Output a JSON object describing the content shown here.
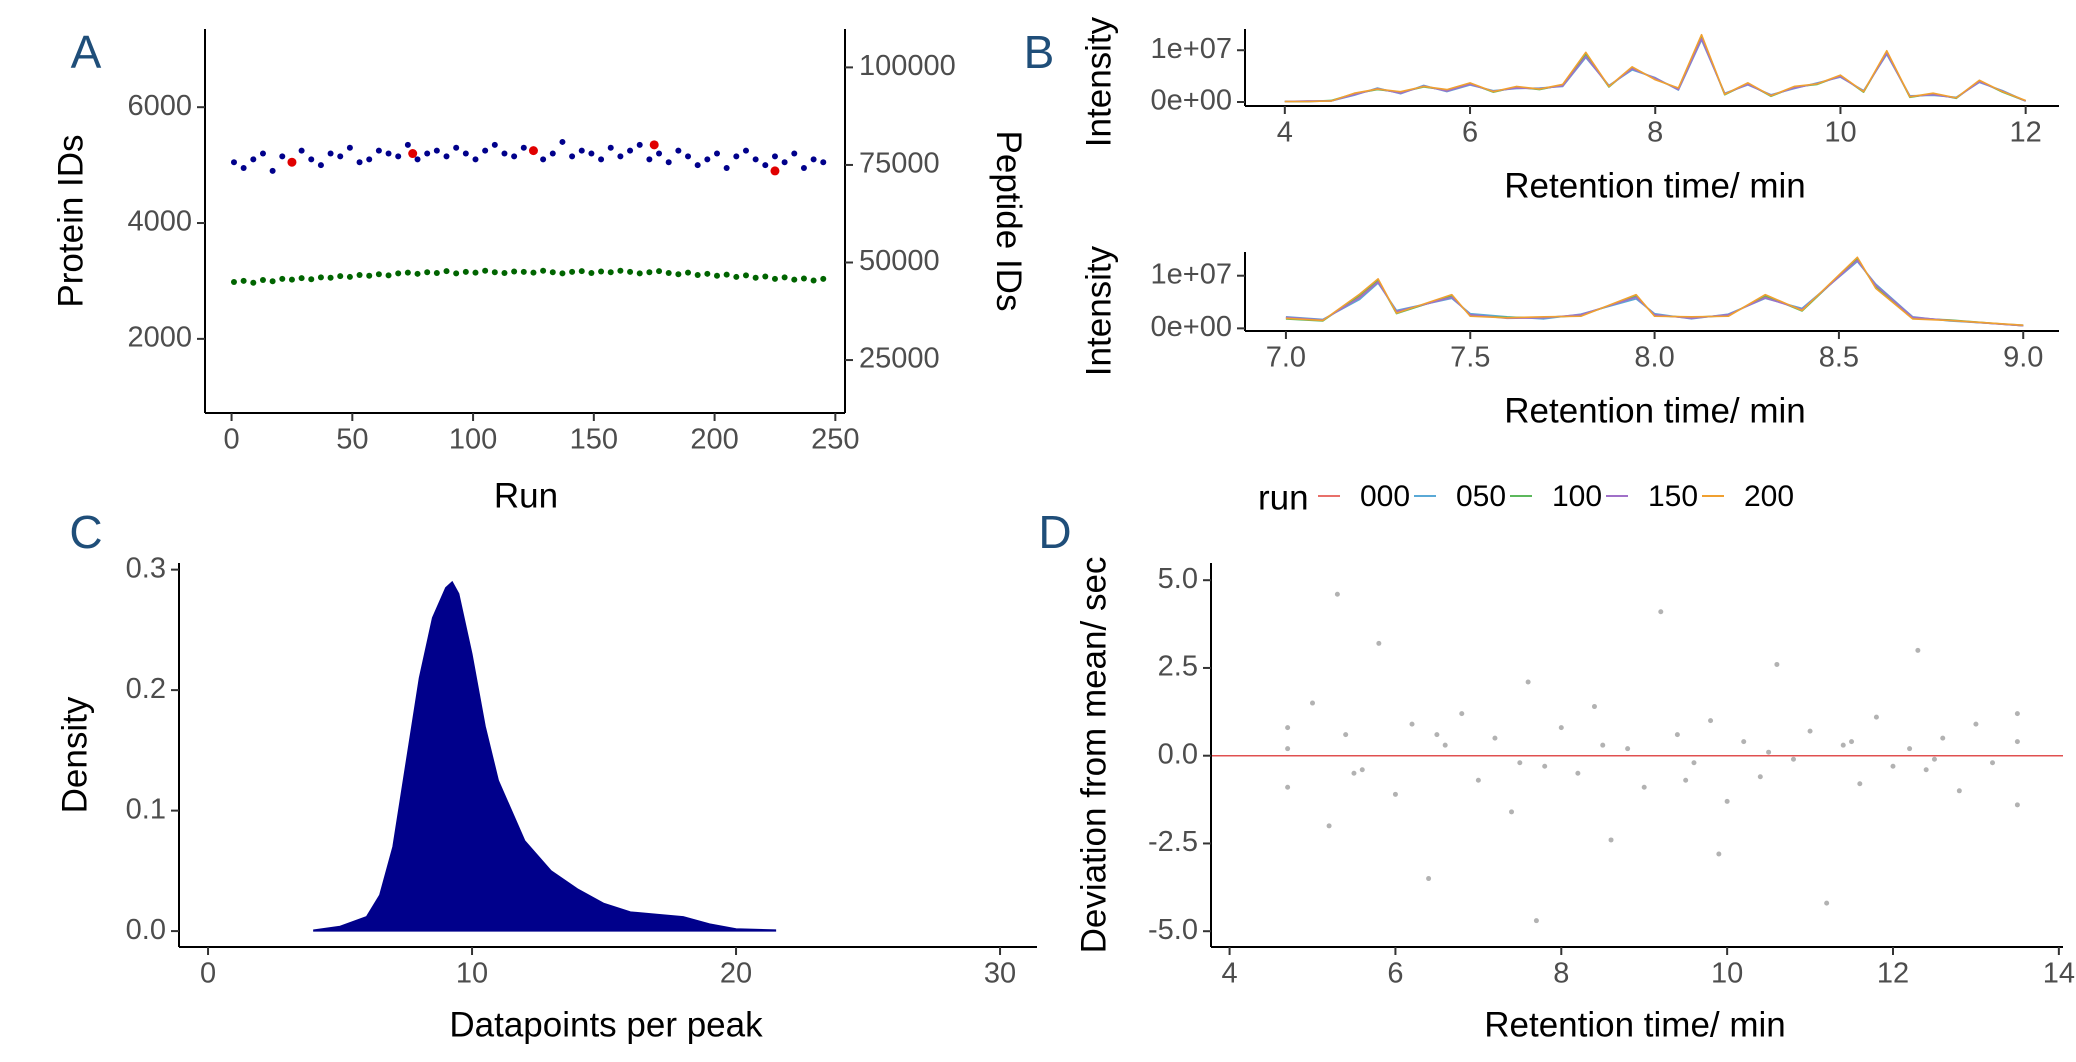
{
  "chart_data": [
    {
      "type": "scatter",
      "panel_label": "A",
      "xlabel": "Run",
      "ylabel": "Protein IDs",
      "y2label": "Peptide IDs",
      "ylabel_color": "#00008b",
      "y2label_color": "#006400",
      "xlim": [
        -11,
        254
      ],
      "xticks": [
        0,
        50,
        100,
        150,
        200,
        250
      ],
      "ylim": [
        720,
        7350
      ],
      "yticks": [
        2000,
        4000,
        6000
      ],
      "y2lim": [
        11430,
        109840
      ],
      "y2ticks": [
        25000,
        50000,
        75000,
        100000
      ],
      "series": [
        {
          "color": "#00008b",
          "x": [
            1,
            5,
            9,
            13,
            17,
            21,
            25,
            29,
            33,
            37,
            41,
            45,
            49,
            53,
            57,
            61,
            65,
            69,
            73,
            77,
            81,
            85,
            89,
            93,
            97,
            101,
            105,
            109,
            113,
            117,
            121,
            125,
            129,
            133,
            137,
            141,
            145,
            149,
            153,
            157,
            161,
            165,
            169,
            173,
            177,
            181,
            185,
            189,
            193,
            197,
            201,
            205,
            209,
            213,
            217,
            221,
            225,
            229,
            233,
            237,
            241,
            245
          ],
          "values": [
            5050,
            4950,
            5100,
            5200,
            4900,
            5150,
            5050,
            5250,
            5100,
            5000,
            5200,
            5150,
            5300,
            5050,
            5100,
            5250,
            5200,
            5150,
            5350,
            5100,
            5200,
            5250,
            5150,
            5300,
            5200,
            5100,
            5250,
            5350,
            5200,
            5150,
            5300,
            5250,
            5100,
            5200,
            5400,
            5150,
            5250,
            5200,
            5100,
            5300,
            5150,
            5250,
            5350,
            5100,
            5200,
            5050,
            5250,
            5150,
            5000,
            5100,
            5200,
            4950,
            5150,
            5250,
            5100,
            5000,
            5150,
            5050,
            5200,
            4950,
            5100,
            5050
          ]
        },
        {
          "color": "#e00000",
          "x": [
            25,
            75,
            125,
            175,
            225
          ],
          "values": [
            5050,
            5200,
            5250,
            5350,
            4900
          ]
        },
        {
          "color": "#006400",
          "axis": "y2",
          "x": [
            1,
            5,
            9,
            13,
            17,
            21,
            25,
            29,
            33,
            37,
            41,
            45,
            49,
            53,
            57,
            61,
            65,
            69,
            73,
            77,
            81,
            85,
            89,
            93,
            97,
            101,
            105,
            109,
            113,
            117,
            121,
            125,
            129,
            133,
            137,
            141,
            145,
            149,
            153,
            157,
            161,
            165,
            169,
            173,
            177,
            181,
            185,
            189,
            193,
            197,
            201,
            205,
            209,
            213,
            217,
            221,
            225,
            229,
            233,
            237,
            241,
            245
          ],
          "values": [
            45000,
            45300,
            44800,
            45500,
            45200,
            45800,
            45600,
            46000,
            45700,
            46200,
            46100,
            46500,
            46300,
            46800,
            46600,
            47000,
            46700,
            47200,
            47400,
            47100,
            47500,
            47300,
            47800,
            47200,
            47600,
            47400,
            47900,
            47500,
            47300,
            47700,
            47600,
            47400,
            47900,
            47500,
            47200,
            47600,
            47800,
            47300,
            47700,
            47500,
            47900,
            47600,
            47200,
            47500,
            47800,
            47300,
            47000,
            47400,
            46800,
            47100,
            46600,
            46900,
            46300,
            46700,
            46100,
            46400,
            45800,
            46200,
            45600,
            45900,
            45400,
            45800
          ]
        }
      ]
    },
    {
      "type": "line",
      "panel_label": "B",
      "xlabel": "Retention time/ min",
      "ylabel": "Intensity",
      "legend_title": "run",
      "xlim": [
        3.57,
        12.36
      ],
      "xticks": [
        4,
        6,
        8,
        10,
        12
      ],
      "ylim": [
        -770000,
        14100000
      ],
      "yticks": [
        {
          "value": 0,
          "label": "0e+00"
        },
        {
          "value": 10000000,
          "label": "1e+07"
        }
      ],
      "x": [
        4,
        4.25,
        4.5,
        4.75,
        5,
        5.25,
        5.5,
        5.75,
        6,
        6.25,
        6.5,
        6.75,
        7,
        7.25,
        7.5,
        7.75,
        8,
        8.25,
        8.5,
        8.75,
        9,
        9.25,
        9.5,
        9.75,
        10,
        10.25,
        10.5,
        10.75,
        11,
        11.25,
        11.5,
        11.75,
        12
      ],
      "series": [
        {
          "name": "000",
          "color": "#e8706a",
          "values": [
            100000.0,
            100000.0,
            200000.0,
            1500000.0,
            2500000.0,
            1800000.0,
            3000000.0,
            2200000.0,
            3500000.0,
            2000000.0,
            2800000.0,
            2500000.0,
            3200000.0,
            9000000.0,
            3000000.0,
            6500000.0,
            4500000.0,
            2500000.0,
            12500000.0,
            1500000.0,
            3500000.0,
            1200000.0,
            2800000.0,
            3500000.0,
            5000000.0,
            2000000.0,
            9500000.0,
            1000000.0,
            1500000.0,
            800000.0,
            4000000.0,
            2000000.0,
            200000.0
          ]
        },
        {
          "name": "050",
          "color": "#5aa9d6",
          "values": [
            100000.0,
            100000.0,
            200000.0,
            1300000.0,
            2700000.0,
            1600000.0,
            3200000.0,
            2000000.0,
            3300000.0,
            2200000.0,
            2600000.0,
            2700000.0,
            3000000.0,
            8600000.0,
            3200000.0,
            6200000.0,
            4700000.0,
            2300000.0,
            12000000.0,
            1700000.0,
            3300000.0,
            1400000.0,
            2600000.0,
            3700000.0,
            4800000.0,
            2200000.0,
            9200000.0,
            1200000.0,
            1300000.0,
            900000.0,
            3800000.0,
            2200000.0,
            200000.0
          ]
        },
        {
          "name": "100",
          "color": "#5cb85c",
          "values": [
            100000.0,
            100000.0,
            300000.0,
            1600000.0,
            2400000.0,
            1900000.0,
            2900000.0,
            2300000.0,
            3600000.0,
            1900000.0,
            2900000.0,
            2400000.0,
            3300000.0,
            9300000.0,
            2900000.0,
            6700000.0,
            4400000.0,
            2600000.0,
            12800000.0,
            1400000.0,
            3600000.0,
            1100000.0,
            2900000.0,
            3400000.0,
            5100000.0,
            1900000.0,
            9700000.0,
            900000.0,
            1600000.0,
            700000.0,
            4100000.0,
            1900000.0,
            200000.0
          ]
        },
        {
          "name": "150",
          "color": "#a070c8",
          "values": [
            100000.0,
            200000.0,
            200000.0,
            1400000.0,
            2600000.0,
            1700000.0,
            3100000.0,
            2100000.0,
            3400000.0,
            2100000.0,
            2700000.0,
            2600000.0,
            3100000.0,
            8800000.0,
            3100000.0,
            6400000.0,
            4600000.0,
            2400000.0,
            12200000.0,
            1600000.0,
            3400000.0,
            1300000.0,
            2700000.0,
            3600000.0,
            4900000.0,
            2100000.0,
            9400000.0,
            1100000.0,
            1400000.0,
            800000.0,
            3900000.0,
            2100000.0,
            200000.0
          ]
        },
        {
          "name": "200",
          "color": "#f0a030",
          "values": [
            100000.0,
            100000.0,
            200000.0,
            1700000.0,
            2500000.0,
            2000000.0,
            3000000.0,
            2400000.0,
            3700000.0,
            2000000.0,
            3000000.0,
            2500000.0,
            3400000.0,
            9600000.0,
            3000000.0,
            6800000.0,
            4300000.0,
            2700000.0,
            13000000.0,
            1500000.0,
            3700000.0,
            1200000.0,
            3000000.0,
            3500000.0,
            5200000.0,
            2000000.0,
            9900000.0,
            1000000.0,
            1700000.0,
            800000.0,
            4200000.0,
            2000000.0,
            300000.0
          ]
        }
      ]
    },
    {
      "type": "line",
      "xlabel": "Retention time/ min",
      "ylabel": "Intensity",
      "xlim": [
        6.889,
        9.097
      ],
      "xticks": [
        {
          "value": 7,
          "label": "7.0"
        },
        7.5,
        {
          "value": 8,
          "label": "8.0"
        },
        8.5,
        {
          "value": 9,
          "label": "9.0"
        }
      ],
      "ylim": [
        -500000,
        14500000
      ],
      "yticks": [
        {
          "value": 0,
          "label": "0e+00"
        },
        {
          "value": 10000000,
          "label": "1e+07"
        }
      ],
      "x": [
        7.0,
        7.1,
        7.2,
        7.25,
        7.3,
        7.45,
        7.5,
        7.6,
        7.7,
        7.8,
        7.95,
        8.0,
        8.1,
        8.2,
        8.3,
        8.4,
        8.55,
        8.6,
        8.7,
        8.8,
        9.0
      ],
      "series": [
        {
          "color": "#e8706a",
          "values": [
            2000000.0,
            1500000.0,
            6000000.0,
            9000000.0,
            3000000.0,
            6000000.0,
            2500000.0,
            2000000.0,
            2000000.0,
            2500000.0,
            6000000.0,
            2500000.0,
            2000000.0,
            2500000.0,
            6000000.0,
            3500000.0,
            13000000.0,
            8000000.0,
            2000000.0,
            1500000.0,
            500000.0
          ]
        },
        {
          "color": "#5aa9d6",
          "values": [
            2200000.0,
            1700000.0,
            5500000.0,
            8600000.0,
            3400000.0,
            5700000.0,
            2800000.0,
            2200000.0,
            1800000.0,
            2700000.0,
            5600000.0,
            2800000.0,
            1800000.0,
            2700000.0,
            5700000.0,
            3800000.0,
            12700000.0,
            8400000.0,
            2200000.0,
            1400000.0,
            600000.0
          ]
        },
        {
          "color": "#5cb85c",
          "values": [
            1800000.0,
            1400000.0,
            6300000.0,
            9200000.0,
            2800000.0,
            6200000.0,
            2400000.0,
            2100000.0,
            2100000.0,
            2400000.0,
            6200000.0,
            2400000.0,
            2100000.0,
            2400000.0,
            6200000.0,
            3300000.0,
            13200000.0,
            7800000.0,
            1900000.0,
            1600000.0,
            500000.0
          ]
        },
        {
          "color": "#a070c8",
          "values": [
            2100000.0,
            1600000.0,
            5800000.0,
            8800000.0,
            3200000.0,
            5900000.0,
            2600000.0,
            1900000.0,
            2000000.0,
            2600000.0,
            5900000.0,
            2600000.0,
            1900000.0,
            2600000.0,
            5800000.0,
            3600000.0,
            12900000.0,
            8200000.0,
            2100000.0,
            1500000.0,
            500000.0
          ]
        },
        {
          "color": "#f0a030",
          "values": [
            1900000.0,
            1500000.0,
            6500000.0,
            9400000.0,
            2900000.0,
            6400000.0,
            2300000.0,
            2000000.0,
            2200000.0,
            2300000.0,
            6400000.0,
            2300000.0,
            2200000.0,
            2300000.0,
            6400000.0,
            3400000.0,
            13500000.0,
            7600000.0,
            1800000.0,
            1500000.0,
            600000.0
          ]
        }
      ]
    },
    {
      "type": "area",
      "panel_label": "C",
      "xlabel": "Datapoints per peak",
      "ylabel": "Density",
      "color": "#00008b",
      "xlim": [
        -1.1,
        31.4
      ],
      "xticks": [
        0,
        10,
        20,
        30
      ],
      "ylim": [
        -0.0132,
        0.3055
      ],
      "yticks": [
        {
          "value": 0,
          "label": "0.0"
        },
        0.1,
        0.2,
        0.3
      ],
      "x": [
        4,
        5,
        6,
        6.5,
        7,
        7.5,
        8,
        8.5,
        9,
        9.25,
        9.5,
        10,
        10.5,
        11,
        12,
        13,
        14,
        15,
        16,
        17,
        18,
        19,
        20,
        21.5
      ],
      "values": [
        0.001,
        0.004,
        0.012,
        0.03,
        0.07,
        0.14,
        0.21,
        0.26,
        0.285,
        0.29,
        0.28,
        0.23,
        0.17,
        0.125,
        0.075,
        0.05,
        0.035,
        0.023,
        0.016,
        0.014,
        0.012,
        0.006,
        0.002,
        0.001
      ]
    },
    {
      "type": "scatter",
      "panel_label": "D",
      "xlabel": "Retention time/ min",
      "ylabel": "Deviation from mean/ sec",
      "color": "#000000",
      "hline": {
        "value": 0,
        "color": "#e05050"
      },
      "xlim": [
        3.776,
        14.05
      ],
      "xticks": [
        4,
        6,
        8,
        10,
        12,
        14
      ],
      "ylim": [
        -5.45,
        5.49
      ],
      "yticks": [
        {
          "value": 5,
          "label": "5.0"
        },
        2.5,
        {
          "value": 0,
          "label": "0.0"
        },
        -2.5,
        {
          "value": -5,
          "label": "-5.0"
        }
      ],
      "x": [
        4.7,
        4.7,
        4.7,
        5.0,
        5.2,
        5.4,
        5.6,
        5.8,
        6.0,
        6.2,
        6.4,
        6.6,
        6.8,
        7.0,
        7.2,
        7.4,
        7.6,
        7.8,
        8.0,
        8.2,
        8.4,
        8.6,
        8.8,
        9.0,
        9.2,
        9.4,
        9.6,
        9.8,
        10.0,
        10.2,
        10.4,
        10.6,
        10.8,
        11.0,
        11.2,
        11.4,
        11.6,
        11.8,
        12.0,
        12.2,
        12.4,
        12.6,
        12.8,
        13.0,
        13.2,
        13.5,
        13.5,
        13.5,
        5.5,
        6.5,
        7.5,
        8.5,
        9.5,
        10.5,
        11.5,
        12.5,
        5.3,
        7.7,
        9.9,
        12.3
      ],
      "values": [
        0.8,
        -0.9,
        0.2,
        1.5,
        -2.0,
        0.6,
        -0.4,
        3.2,
        -1.1,
        0.9,
        -3.5,
        0.3,
        1.2,
        -0.7,
        0.5,
        -1.6,
        2.1,
        -0.3,
        0.8,
        -0.5,
        1.4,
        -2.4,
        0.2,
        -0.9,
        4.1,
        0.6,
        -0.2,
        1.0,
        -1.3,
        0.4,
        -0.6,
        2.6,
        -0.1,
        0.7,
        -4.2,
        0.3,
        -0.8,
        1.1,
        -0.3,
        0.2,
        -0.4,
        0.5,
        -1.0,
        0.9,
        -0.2,
        1.2,
        -1.4,
        0.4,
        -0.5,
        0.6,
        -0.2,
        0.3,
        -0.7,
        0.1,
        0.4,
        -0.1,
        4.6,
        -4.7,
        -2.8,
        3.0
      ]
    }
  ]
}
